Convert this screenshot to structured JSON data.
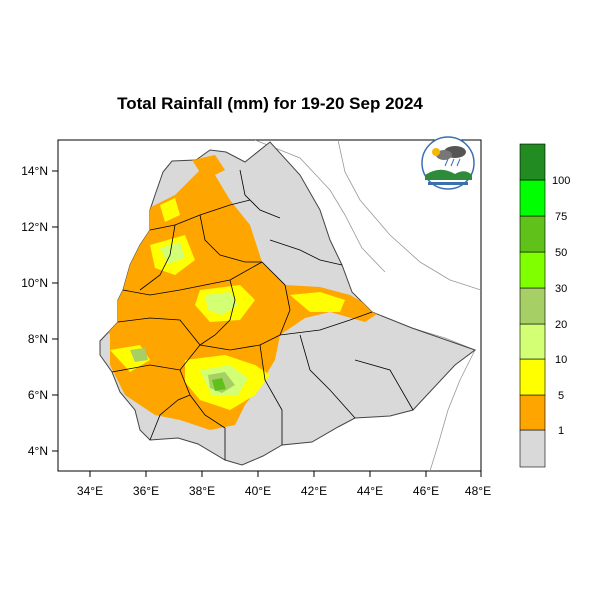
{
  "title": "Total Rainfall (mm) for 19-20 Sep 2024",
  "x_ticks": [
    "34°E",
    "36°E",
    "38°E",
    "40°E",
    "42°E",
    "44°E",
    "46°E",
    "48°E"
  ],
  "y_ticks": [
    "14°N",
    "12°N",
    "10°N",
    "8°N",
    "6°N",
    "4°N"
  ],
  "map_extent": {
    "lon": [
      33,
      48.3
    ],
    "lat": [
      3.2,
      15
    ]
  },
  "legend": {
    "labels": [
      "1",
      "5",
      "10",
      "20",
      "30",
      "50",
      "75",
      "100"
    ],
    "colors": [
      "#d9d9d9",
      "#ffa500",
      "#ffff00",
      "#d2ff73",
      "#a6cf66",
      "#80ff00",
      "#5fc11a",
      "#00ff00",
      "#1aaa1a",
      "#228b22"
    ]
  },
  "logo": {
    "icon": "meteorology-institute-logo"
  },
  "colors": {
    "land": "#d9d9d9",
    "border": "#000000",
    "sea_line": "#999999"
  }
}
